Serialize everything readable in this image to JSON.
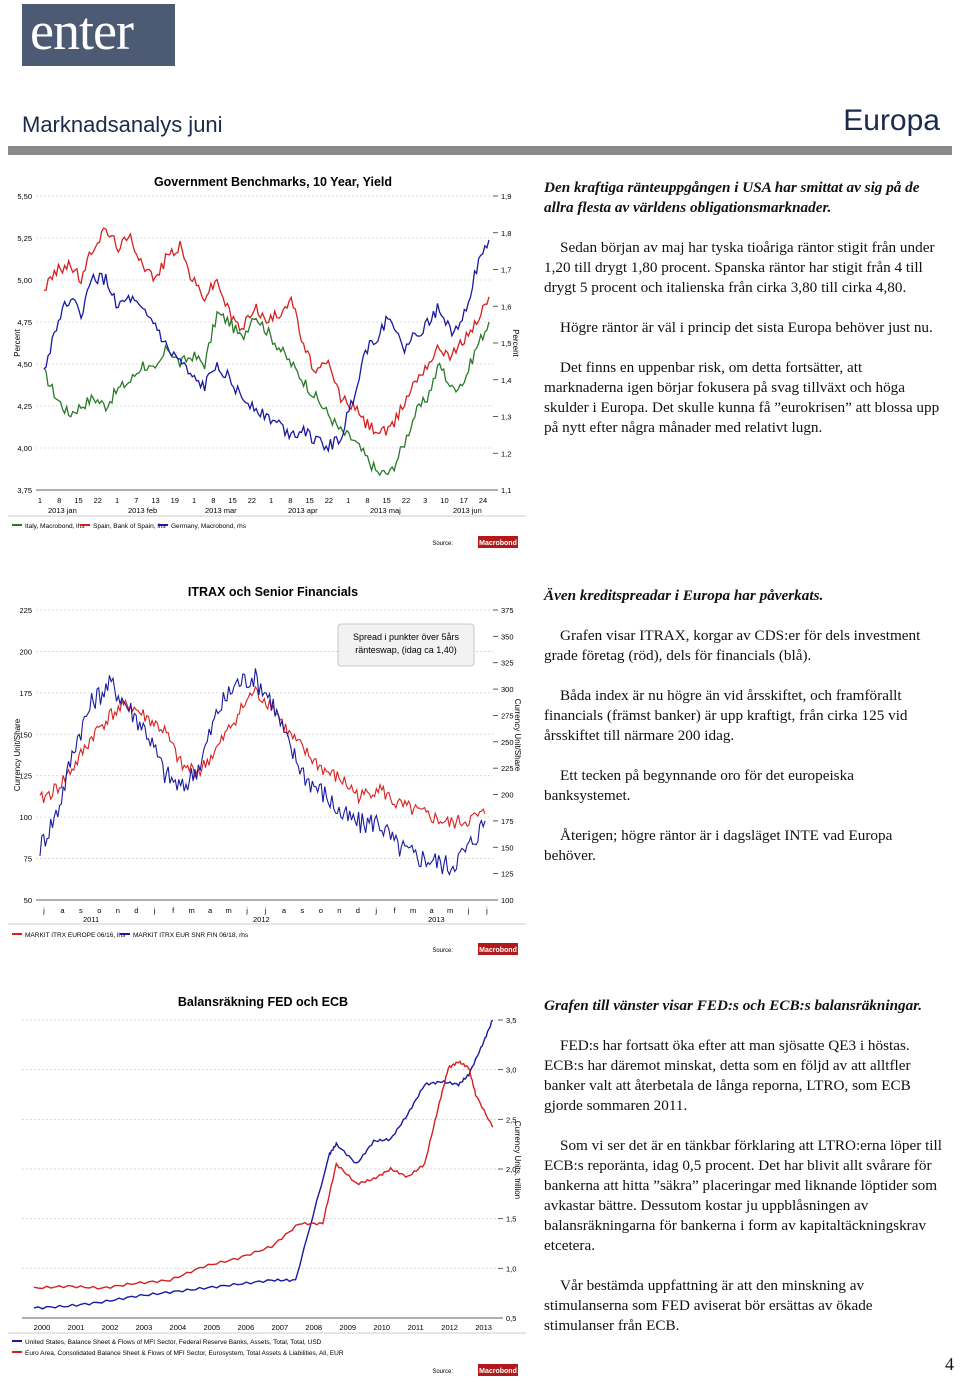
{
  "header": {
    "logo": "enter",
    "doc_title": "Marknadsanalys juni",
    "region": "Europa"
  },
  "page_number": "4",
  "colors": {
    "italy": "#2a7a2a",
    "spain": "#d62020",
    "germany": "#1a1aa0",
    "fed": "#1a1aa0",
    "ecb": "#d62020",
    "itrax": "#d62020",
    "senior": "#1a1aa0"
  },
  "chart_data": [
    {
      "type": "line",
      "title": "Government Benchmarks, 10 Year, Yield",
      "ylabel": "Percent",
      "ylabel_right": "Percent",
      "ylim": [
        3.75,
        5.5
      ],
      "ylim_right": [
        1.1,
        1.9
      ],
      "yticks": [
        "5,50",
        "5,25",
        "5,00",
        "4,75",
        "4,50",
        "4,25",
        "4,00",
        "3,75"
      ],
      "yticks_right": [
        "1,9",
        "1,8",
        "1,7",
        "1,6",
        "1,5",
        "1,4",
        "1,3",
        "1,2",
        "1,1"
      ],
      "xticks": [
        "1",
        "8",
        "15",
        "22",
        "1",
        "7",
        "13",
        "19",
        "1",
        "8",
        "15",
        "22",
        "1",
        "8",
        "15",
        "22",
        "1",
        "8",
        "15",
        "22",
        "3",
        "10",
        "17",
        "24"
      ],
      "xgroups": [
        "2013 jan",
        "2013 feb",
        "2013 mar",
        "2013 apr",
        "2013 maj",
        "2013 jun"
      ],
      "source_label": "Source:",
      "source_brand": "Macrobond",
      "series": [
        {
          "name": "Italy, Macrobond, lhs",
          "axis": "left",
          "values": [
            4.45,
            4.3,
            4.2,
            4.25,
            4.3,
            4.25,
            4.35,
            4.4,
            4.5,
            4.45,
            4.6,
            4.5,
            4.55,
            4.5,
            4.8,
            4.75,
            4.65,
            4.8,
            4.7,
            4.6,
            4.5,
            4.4,
            4.3,
            4.2,
            4.1,
            4.05,
            3.95,
            3.85,
            3.85,
            4.0,
            4.2,
            4.3,
            4.5,
            4.35,
            4.4,
            4.6,
            4.75
          ]
        },
        {
          "name": "Spain, Bank of Spain, lhs",
          "axis": "left",
          "values": [
            4.95,
            5.05,
            5.1,
            5.0,
            5.2,
            5.3,
            5.2,
            5.25,
            5.1,
            5.0,
            5.15,
            5.2,
            5.0,
            4.9,
            5.0,
            4.8,
            4.7,
            4.85,
            4.75,
            4.8,
            4.9,
            4.6,
            4.45,
            4.5,
            4.3,
            4.25,
            4.15,
            4.1,
            4.1,
            4.25,
            4.4,
            4.5,
            4.6,
            4.55,
            4.65,
            4.75,
            4.9
          ]
        },
        {
          "name": "Germany, Macrobond, rhs",
          "axis": "right",
          "values": [
            1.42,
            1.55,
            1.62,
            1.58,
            1.68,
            1.67,
            1.6,
            1.62,
            1.58,
            1.55,
            1.48,
            1.45,
            1.4,
            1.38,
            1.45,
            1.4,
            1.35,
            1.33,
            1.3,
            1.28,
            1.25,
            1.27,
            1.23,
            1.22,
            1.24,
            1.35,
            1.48,
            1.52,
            1.58,
            1.48,
            1.52,
            1.55,
            1.6,
            1.53,
            1.58,
            1.7,
            1.78
          ]
        }
      ]
    },
    {
      "type": "line",
      "title": "ITRAX och Senior Financials",
      "ylabel": "Currency Unit/Share",
      "ylabel_right": "Currency Unit/Share",
      "ylim": [
        50,
        225
      ],
      "ylim_right": [
        100,
        375
      ],
      "yticks": [
        "225",
        "200",
        "175",
        "150",
        "125",
        "100",
        "75",
        "50"
      ],
      "yticks_right": [
        "375",
        "350",
        "325",
        "300",
        "275",
        "250",
        "225",
        "200",
        "175",
        "150",
        "125",
        "100"
      ],
      "annotation": [
        "Spread i punkter över 5års",
        "ränteswap, (idag ca 1,40)"
      ],
      "xticks": [
        "j",
        "a",
        "s",
        "o",
        "n",
        "d",
        "j",
        "f",
        "m",
        "a",
        "m",
        "j",
        "j",
        "a",
        "s",
        "o",
        "n",
        "d",
        "j",
        "f",
        "m",
        "a",
        "m",
        "j",
        "j"
      ],
      "xgroups": [
        "2011",
        "2012",
        "2013"
      ],
      "source_label": "Source:",
      "source_brand": "Macrobond",
      "series": [
        {
          "name": "MARKIT ITRX EUROPE 06/16, lhs",
          "axis": "left",
          "values": [
            110,
            118,
            132,
            150,
            162,
            168,
            160,
            152,
            130,
            128,
            142,
            160,
            176,
            168,
            150,
            138,
            128,
            122,
            112,
            118,
            108,
            104,
            100,
            96,
            98,
            102
          ]
        },
        {
          "name": "MARKIT ITRX EUR SNR FIN 06/18, rhs",
          "axis": "right",
          "values": [
            150,
            185,
            250,
            290,
            305,
            282,
            260,
            220,
            205,
            230,
            280,
            305,
            312,
            290,
            245,
            215,
            200,
            180,
            172,
            175,
            152,
            142,
            138,
            132,
            148,
            175
          ]
        }
      ]
    },
    {
      "type": "line",
      "title": "Balansräkning FED och ECB",
      "ylabel": "",
      "ylabel_right": "Currency Units, trillion",
      "ylim_right": [
        0.5,
        3.5
      ],
      "yticks_right": [
        "3,5",
        "3,0",
        "2,5",
        "2,0",
        "1,5",
        "1,0",
        "0,5"
      ],
      "xticks": [
        "2000",
        "2001",
        "2002",
        "2003",
        "2004",
        "2005",
        "2006",
        "2007",
        "2008",
        "2009",
        "2010",
        "2011",
        "2012",
        "2013"
      ],
      "source_label": "Source:",
      "source_brand": "Macrobond",
      "series": [
        {
          "name": "United States, Balance Sheet & Flows of MFI Sector, Federal Reserve Banks, Assets, Total, Total, USD",
          "axis": "right",
          "x": [
            2000,
            2001,
            2002,
            2003,
            2004,
            2005,
            2006,
            2007,
            2007.7,
            2008.7,
            2008.9,
            2009.5,
            2010,
            2010.5,
            2011,
            2011.5,
            2012,
            2012.5,
            2012.8,
            2013.2,
            2013.5
          ],
          "values": [
            0.6,
            0.62,
            0.66,
            0.72,
            0.76,
            0.8,
            0.84,
            0.88,
            0.88,
            2.15,
            2.25,
            2.05,
            2.28,
            2.3,
            2.55,
            2.85,
            2.88,
            2.85,
            2.95,
            3.25,
            3.5
          ]
        },
        {
          "name": "Euro Area, Consolidated Balance Sheet & Flows of MFI Sector, Eurosystem, Total Assets & Liabilities, All, EUR",
          "axis": "right",
          "x": [
            2000,
            2001,
            2002,
            2003,
            2004,
            2005,
            2006,
            2007,
            2007.8,
            2008.5,
            2008.9,
            2009.5,
            2010,
            2010.5,
            2011,
            2011.5,
            2011.9,
            2012.2,
            2012.5,
            2012.8,
            2013,
            2013.5
          ],
          "values": [
            0.8,
            0.82,
            0.8,
            0.85,
            0.88,
            1.02,
            1.1,
            1.22,
            1.45,
            1.45,
            2.05,
            1.85,
            1.9,
            2.0,
            1.92,
            2.05,
            2.62,
            3.02,
            3.08,
            3.02,
            2.75,
            2.42
          ]
        }
      ]
    }
  ],
  "sections": [
    {
      "lead": "Den kraftiga ränteuppgången i USA har smittat av sig på de allra flesta av världens obligationsmarknader.",
      "paragraphs": [
        "Sedan början av maj har tyska tioåriga räntor stigit från under 1,20 till drygt 1,80 procent. Spanska räntor har stigit från 4 till drygt 5 procent och italienska från cirka 3,80 till cirka 4,80.",
        "Högre räntor är väl i princip det sista Europa behöver just nu.",
        "Det finns en uppenbar risk, om detta fortsätter, att marknaderna igen börjar fokusera på svag tillväxt och höga skulder i Europa. Det skulle kunna få ”eurokrisen” att blossa upp på nytt efter några månader med relativt lugn."
      ]
    },
    {
      "lead": "Även kreditspreadar i Europa har påverkats.",
      "paragraphs": [
        "Grafen visar ITRAX, korgar av CDS:er för dels investment grade företag (röd), dels för financials (blå).",
        "Båda index är nu högre än vid årsskiftet, och framförallt financials (främst banker) är upp kraftigt, från cirka 125 vid årsskiftet till närmare 200 idag.",
        "Ett tecken på begynnande oro för det europeiska banksystemet.",
        "Återigen; högre räntor är i dagsläget INTE vad Europa behöver."
      ]
    },
    {
      "lead": "Grafen till vänster visar FED:s och ECB:s balansräkningar.",
      "paragraphs": [
        "FED:s har fortsatt öka efter att man sjösatte QE3 i höstas. ECB:s har däremot minskat, detta som en följd av att alltfler banker valt att återbetala de långa reporna, LTRO, som ECB gjorde sommaren 2011.",
        "Som vi ser det är en tänkbar förklaring att LTRO:erna löper till ECB:s reporänta, idag 0,5 procent. Det har blivit allt svårare för bankerna att hitta ”säkra” placeringar med liknande löptider som avkastar bättre. Dessutom kostar ju uppblåsningen av balansräkningarna för bankerna i form av kapitaltäckningskrav etcetera.",
        "Vår bestämda uppfattning är att den minskning av stimulanserna som FED aviserat bör ersättas av ökade stimulanser från ECB."
      ]
    }
  ]
}
